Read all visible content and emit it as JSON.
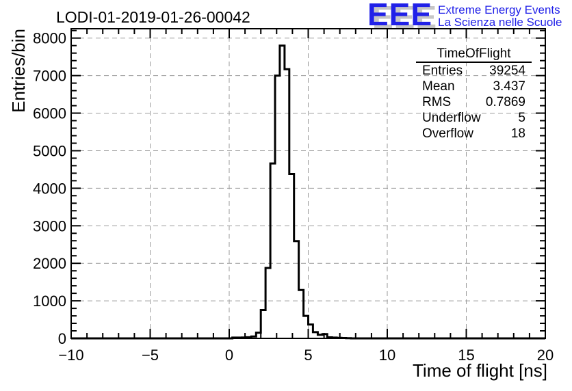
{
  "header": {
    "title": "LODI-01-2019-01-26-00042"
  },
  "logo": {
    "acronym": "EEE",
    "line1": "Extreme Energy Events",
    "line2": "La Scienza nelle Scuole",
    "color": "#2121e8",
    "shadow_color": "#c6c6c6"
  },
  "stats": {
    "header": "TimeOfFlight",
    "rows": [
      {
        "label": "Entries",
        "value": "39254"
      },
      {
        "label": "Mean",
        "value": "3.437"
      },
      {
        "label": "RMS",
        "value": "0.7869"
      },
      {
        "label": "Underflow",
        "value": "5"
      },
      {
        "label": "Overflow",
        "value": "18"
      }
    ]
  },
  "chart_data": {
    "type": "bar",
    "subtype": "step-histogram",
    "title": "LODI-01-2019-01-26-00042",
    "xlabel": "Time of flight [ns]",
    "ylabel": "Entries/bin",
    "xlim": [
      -10,
      20
    ],
    "ylim": [
      0,
      8250
    ],
    "x_major_ticks": [
      -10,
      -5,
      0,
      5,
      10,
      15,
      20
    ],
    "x_tick_labels": [
      "−10",
      "−5",
      "0",
      "5",
      "10",
      "15",
      "20"
    ],
    "x_minor_step": 1,
    "y_major_ticks": [
      0,
      1000,
      2000,
      3000,
      4000,
      5000,
      6000,
      7000,
      8000
    ],
    "y_tick_labels": [
      "0",
      "1000",
      "2000",
      "3000",
      "4000",
      "5000",
      "6000",
      "7000",
      "8000"
    ],
    "y_minor_step": 200,
    "grid": true,
    "grid_color": "#9a9a9a",
    "line_color": "#000000",
    "bin_width": 0.3,
    "bins_nonzero": [
      [
        0.2,
        20
      ],
      [
        0.5,
        20
      ],
      [
        0.8,
        22
      ],
      [
        1.1,
        30
      ],
      [
        1.4,
        50
      ],
      [
        1.7,
        150
      ],
      [
        2.0,
        755
      ],
      [
        2.3,
        1875
      ],
      [
        2.6,
        4660
      ],
      [
        2.9,
        7000
      ],
      [
        3.2,
        7800
      ],
      [
        3.5,
        7170
      ],
      [
        3.8,
        4380
      ],
      [
        4.1,
        2590
      ],
      [
        4.4,
        1290
      ],
      [
        4.7,
        600
      ],
      [
        5.0,
        368
      ],
      [
        5.3,
        166
      ],
      [
        5.6,
        96
      ],
      [
        5.9,
        114
      ],
      [
        6.2,
        28
      ],
      [
        6.5,
        20
      ],
      [
        6.8,
        14
      ],
      [
        7.1,
        9
      ],
      [
        7.4,
        4
      ]
    ],
    "entries": 39254,
    "mean": 3.437,
    "rms": 0.7869,
    "underflow": 5,
    "overflow": 18,
    "legend": "none"
  }
}
